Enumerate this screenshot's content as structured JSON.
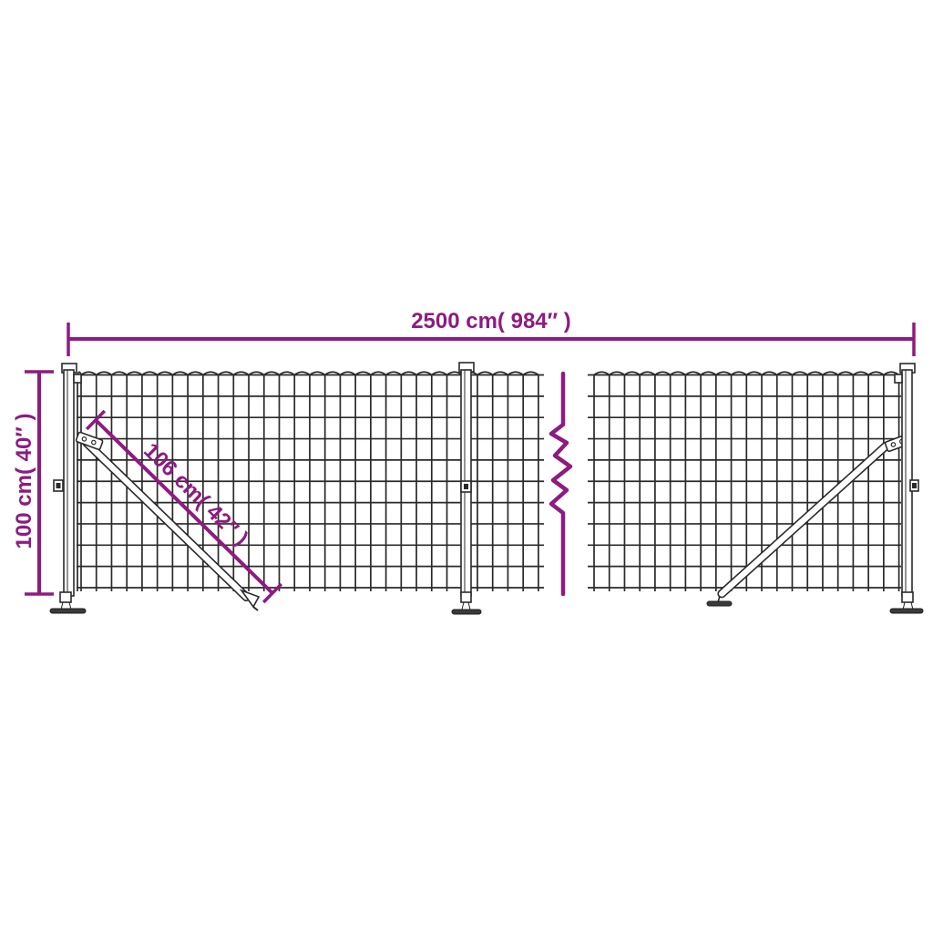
{
  "colors": {
    "dimension": "#8e1b80",
    "wire": "#2a2a2a",
    "metal": "#ffffff",
    "plate": "#3a3a3a",
    "background": "#ffffff"
  },
  "annotations": {
    "total_width": {
      "label": "2500 cm( 984″ )"
    },
    "total_height": {
      "label": "100 cm( 40″ )"
    },
    "brace_length": {
      "label": "106 cm( 42″ )"
    }
  }
}
